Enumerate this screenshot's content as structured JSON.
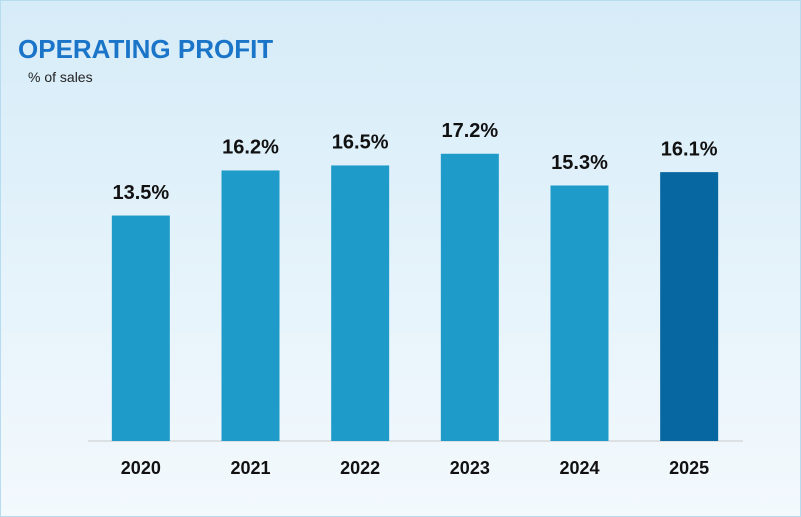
{
  "chart_data": {
    "type": "bar",
    "title": "OPERATING PROFIT",
    "subtitle": "% of sales",
    "categories": [
      "2020",
      "2021",
      "2022",
      "2023",
      "2024",
      "2025"
    ],
    "values": [
      13.5,
      16.2,
      16.5,
      17.2,
      15.3,
      16.1
    ],
    "value_labels": [
      "13.5%",
      "16.2%",
      "16.5%",
      "17.2%",
      "15.3%",
      "16.1%"
    ],
    "colors": [
      "#1e9bc8",
      "#1e9bc8",
      "#1e9bc8",
      "#1e9bc8",
      "#1e9bc8",
      "#0767a0"
    ],
    "ylim": [
      0,
      20
    ]
  }
}
